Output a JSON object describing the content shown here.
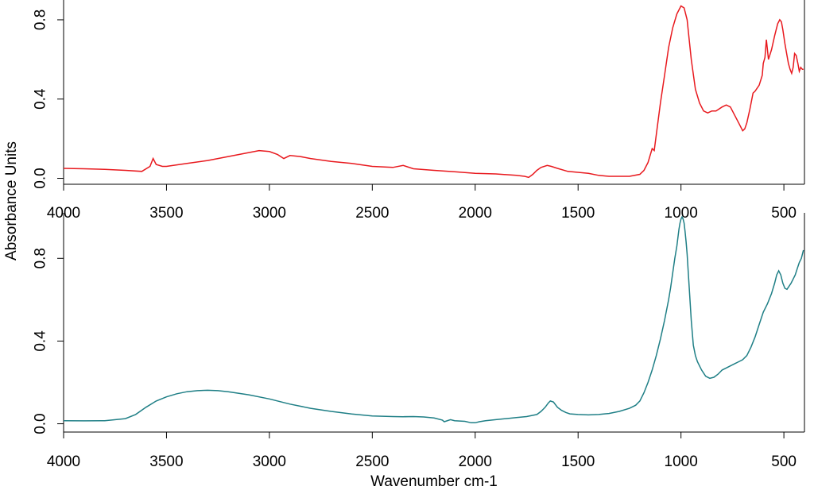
{
  "chart_data": [
    {
      "type": "line",
      "title": "",
      "xlabel": "",
      "ylabel": "Absorbance Units",
      "xlim": [
        4000,
        400
      ],
      "ylim": [
        -0.03,
        0.9
      ],
      "x_ticks": [
        4000,
        3500,
        3000,
        2500,
        2000,
        1500,
        1000,
        500
      ],
      "y_ticks": [
        0.0,
        0.4,
        0.8
      ],
      "x_tick_labels": [
        "4000",
        "3500",
        "3000",
        "2500",
        "2000",
        "1500",
        "1000",
        "500"
      ],
      "y_tick_labels": [
        "0.0",
        "0.4",
        "0.8"
      ],
      "grid": false,
      "series": [
        {
          "color": "#e8191e",
          "x": [
            4000,
            3900,
            3800,
            3700,
            3620,
            3580,
            3565,
            3550,
            3520,
            3500,
            3400,
            3300,
            3200,
            3100,
            3050,
            3000,
            2960,
            2930,
            2900,
            2850,
            2800,
            2700,
            2600,
            2500,
            2400,
            2350,
            2300,
            2200,
            2100,
            2000,
            1900,
            1800,
            1760,
            1740,
            1720,
            1700,
            1680,
            1650,
            1630,
            1600,
            1550,
            1500,
            1450,
            1400,
            1350,
            1300,
            1250,
            1200,
            1180,
            1160,
            1140,
            1130,
            1120,
            1100,
            1080,
            1060,
            1040,
            1020,
            1000,
            985,
            970,
            960,
            950,
            930,
            910,
            890,
            870,
            850,
            830,
            800,
            780,
            760,
            740,
            720,
            700,
            690,
            680,
            665,
            650,
            640,
            620,
            605,
            600,
            592,
            585,
            575,
            560,
            545,
            530,
            520,
            512,
            505,
            495,
            485,
            478,
            470,
            462,
            455,
            448,
            440,
            432,
            425,
            418,
            410,
            405
          ],
          "y": [
            0.05,
            0.048,
            0.045,
            0.04,
            0.035,
            0.06,
            0.1,
            0.07,
            0.06,
            0.06,
            0.075,
            0.09,
            0.11,
            0.13,
            0.14,
            0.135,
            0.12,
            0.1,
            0.115,
            0.11,
            0.1,
            0.085,
            0.075,
            0.06,
            0.055,
            0.065,
            0.048,
            0.04,
            0.033,
            0.025,
            0.022,
            0.015,
            0.01,
            0.005,
            0.02,
            0.04,
            0.055,
            0.065,
            0.06,
            0.05,
            0.035,
            0.03,
            0.025,
            0.015,
            0.01,
            0.01,
            0.01,
            0.02,
            0.04,
            0.08,
            0.15,
            0.14,
            0.22,
            0.38,
            0.52,
            0.66,
            0.76,
            0.83,
            0.87,
            0.86,
            0.8,
            0.7,
            0.6,
            0.45,
            0.38,
            0.34,
            0.33,
            0.34,
            0.34,
            0.36,
            0.37,
            0.36,
            0.32,
            0.28,
            0.24,
            0.25,
            0.28,
            0.35,
            0.43,
            0.44,
            0.47,
            0.52,
            0.58,
            0.61,
            0.7,
            0.6,
            0.65,
            0.72,
            0.78,
            0.8,
            0.79,
            0.75,
            0.68,
            0.62,
            0.58,
            0.55,
            0.53,
            0.56,
            0.63,
            0.62,
            0.58,
            0.54,
            0.56,
            0.55,
            0.55
          ]
        }
      ]
    },
    {
      "type": "line",
      "title": "",
      "xlabel": "Wavenumber cm-1",
      "ylabel": "Absorbance Units",
      "xlim": [
        4000,
        400
      ],
      "ylim": [
        -0.04,
        1.02
      ],
      "x_ticks": [
        4000,
        3500,
        3000,
        2500,
        2000,
        1500,
        1000,
        500
      ],
      "y_ticks": [
        0.0,
        0.4,
        0.8
      ],
      "x_tick_labels": [
        "4000",
        "3500",
        "3000",
        "2500",
        "2000",
        "1500",
        "1000",
        "500"
      ],
      "y_tick_labels": [
        "0.0",
        "0.4",
        "0.8"
      ],
      "grid": false,
      "series": [
        {
          "color": "#1f7f86",
          "x": [
            4000,
            3900,
            3800,
            3700,
            3650,
            3600,
            3550,
            3500,
            3450,
            3400,
            3350,
            3300,
            3250,
            3200,
            3100,
            3000,
            2900,
            2800,
            2700,
            2600,
            2500,
            2400,
            2350,
            2300,
            2250,
            2200,
            2160,
            2150,
            2120,
            2100,
            2050,
            2020,
            2000,
            1980,
            1950,
            1900,
            1850,
            1800,
            1750,
            1700,
            1680,
            1660,
            1645,
            1635,
            1620,
            1600,
            1580,
            1560,
            1540,
            1500,
            1450,
            1400,
            1350,
            1300,
            1250,
            1220,
            1200,
            1180,
            1160,
            1140,
            1120,
            1100,
            1080,
            1060,
            1050,
            1040,
            1030,
            1020,
            1015,
            1010,
            1005,
            1000,
            995,
            990,
            985,
            980,
            975,
            970,
            965,
            960,
            955,
            950,
            940,
            930,
            920,
            910,
            900,
            880,
            860,
            840,
            820,
            800,
            780,
            760,
            740,
            720,
            700,
            680,
            660,
            640,
            620,
            600,
            580,
            560,
            545,
            535,
            525,
            515,
            505,
            495,
            485,
            475,
            465,
            455,
            445,
            435,
            425,
            415,
            405
          ],
          "y": [
            0.015,
            0.014,
            0.015,
            0.025,
            0.045,
            0.08,
            0.11,
            0.13,
            0.145,
            0.155,
            0.16,
            0.162,
            0.16,
            0.155,
            0.14,
            0.12,
            0.095,
            0.075,
            0.06,
            0.047,
            0.038,
            0.035,
            0.034,
            0.035,
            0.033,
            0.028,
            0.018,
            0.01,
            0.02,
            0.015,
            0.012,
            0.005,
            0.005,
            0.01,
            0.015,
            0.02,
            0.025,
            0.03,
            0.035,
            0.045,
            0.06,
            0.08,
            0.1,
            0.11,
            0.105,
            0.08,
            0.065,
            0.055,
            0.048,
            0.045,
            0.043,
            0.045,
            0.05,
            0.06,
            0.075,
            0.09,
            0.11,
            0.15,
            0.2,
            0.26,
            0.33,
            0.41,
            0.5,
            0.6,
            0.66,
            0.73,
            0.8,
            0.86,
            0.9,
            0.94,
            0.97,
            0.99,
            1.0,
            0.99,
            0.97,
            0.93,
            0.88,
            0.82,
            0.74,
            0.66,
            0.58,
            0.5,
            0.38,
            0.33,
            0.3,
            0.28,
            0.26,
            0.23,
            0.22,
            0.225,
            0.24,
            0.26,
            0.27,
            0.28,
            0.29,
            0.3,
            0.31,
            0.33,
            0.37,
            0.42,
            0.48,
            0.54,
            0.58,
            0.63,
            0.68,
            0.72,
            0.74,
            0.72,
            0.68,
            0.655,
            0.65,
            0.665,
            0.68,
            0.7,
            0.72,
            0.75,
            0.78,
            0.8,
            0.84
          ]
        }
      ]
    }
  ]
}
